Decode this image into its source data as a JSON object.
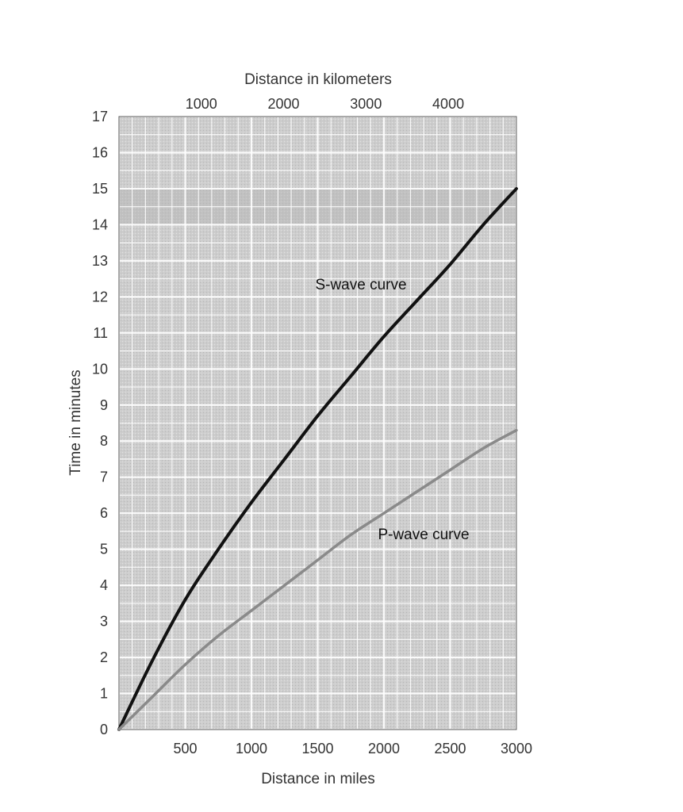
{
  "chart_data": {
    "type": "line",
    "xlabel": "Distance in miles",
    "x2label": "Distance in kilometers",
    "ylabel": "Time in minutes",
    "xlim": [
      0,
      3000
    ],
    "ylim": [
      0,
      17
    ],
    "x_ticks": [
      500,
      1000,
      1500,
      2000,
      2500,
      3000
    ],
    "x2_ticks": [
      1000,
      2000,
      3000,
      4000
    ],
    "y_ticks": [
      0,
      1,
      2,
      3,
      4,
      5,
      6,
      7,
      8,
      9,
      10,
      11,
      12,
      13,
      14,
      15,
      16,
      17
    ],
    "grid": true,
    "series": [
      {
        "name": "S-wave curve",
        "color": "#111111",
        "x": [
          0,
          250,
          500,
          750,
          1000,
          1250,
          1500,
          1750,
          2000,
          2250,
          2500,
          2750,
          3000
        ],
        "y": [
          0,
          1.9,
          3.6,
          5.0,
          6.3,
          7.5,
          8.7,
          9.8,
          10.9,
          11.9,
          12.9,
          14.0,
          15.0
        ]
      },
      {
        "name": "P-wave curve",
        "color": "#8a8a8a",
        "x": [
          0,
          250,
          500,
          750,
          1000,
          1250,
          1500,
          1750,
          2000,
          2250,
          2500,
          2750,
          3000
        ],
        "y": [
          0,
          0.9,
          1.8,
          2.6,
          3.3,
          4.0,
          4.7,
          5.4,
          6.0,
          6.6,
          7.2,
          7.8,
          8.3
        ]
      }
    ]
  }
}
